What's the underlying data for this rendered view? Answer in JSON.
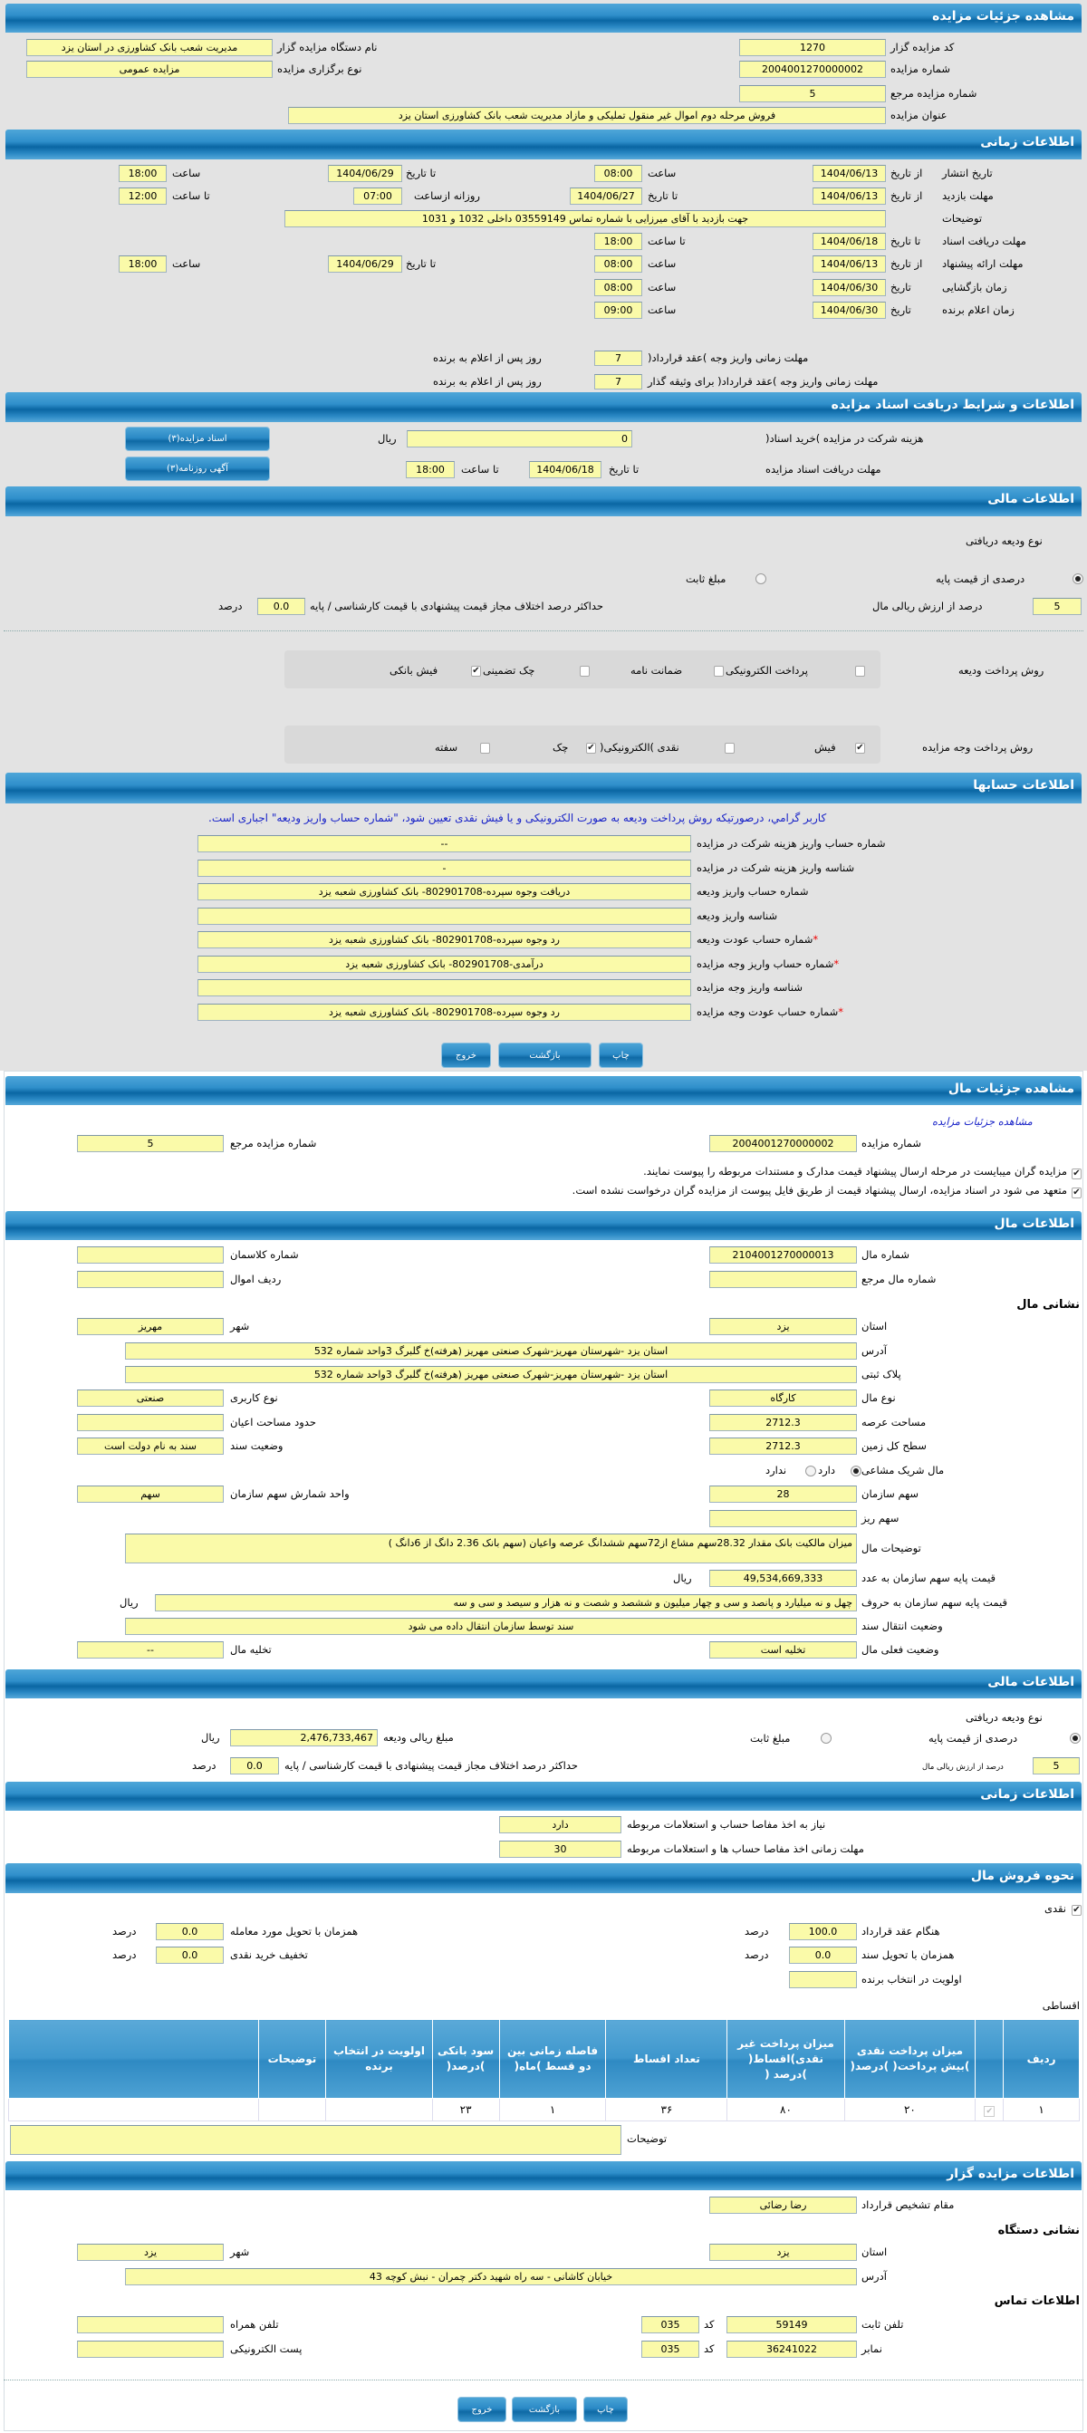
{
  "auction": {
    "title": "مشاهده جزئیات مزایده",
    "org_code_label": "کد مزایده گزار",
    "org_code": "1270",
    "org_name_label": "نام دستگاه مزایده گزار",
    "org_name": "مدیریت شعب بانک کشاورزی در استان یزد",
    "number_label": "شماره مزایده",
    "number": "2004001270000002",
    "type_label": "نوع برگزاری مزایده",
    "type": "مزایده عمومی",
    "ref_label": "شماره مزایده مرجع",
    "ref": "5",
    "subject_label": "عنوان مزایده",
    "subject": "فروش مرحله دوم اموال غیر منقول تملیکی و مازاد مدیریت شعب بانک کشاورزی استان یزد"
  },
  "timing": {
    "title": "اطلاعات زمانی",
    "from_date": "از تاریخ",
    "to_date": "تا تاریخ",
    "date": "تاریخ",
    "hour": "ساعت",
    "to_hour": "تا ساعت",
    "publish_label": "تاریخ انتشار",
    "publish_from": "1404/06/13",
    "publish_from_time": "08:00",
    "publish_to": "1404/06/29",
    "publish_to_time": "18:00",
    "visit_label": "مهلت بازدید",
    "visit_from": "1404/06/13",
    "visit_to": "1404/06/27",
    "daily_from_label": "روزانه ازساعت",
    "daily_from": "07:00",
    "daily_to": "12:00",
    "desc_label": "توضیحات",
    "desc": "جهت بازدید با آقای میرزایی با شماره تماس 03559149  داخلی 1032 و 1031",
    "docs_label": "مهلت دریافت اسناد",
    "docs_to": "1404/06/18",
    "docs_time": "18:00",
    "offer_label": "مهلت ارائه پیشنهاد",
    "offer_from": "1404/06/13",
    "offer_from_time": "08:00",
    "offer_to": "1404/06/29",
    "offer_to_time": "18:00",
    "opening_label": "زمان بازگشایی",
    "opening_date": "1404/06/30",
    "opening_time": "08:00",
    "winner_label": "زمان اعلام برنده",
    "winner_date": "1404/06/30",
    "winner_time": "09:00",
    "pay1_label": "مهلت زمانی واریز وجه )عقد قرارداد(",
    "pay1": "7",
    "pay2_label": "مهلت زمانی واریز وجه )عقد قرارداد( برای وثیقه گذار",
    "pay2": "7",
    "days_after": "روز پس از اعلام به برنده"
  },
  "docs": {
    "title": "اطلاعات و شرایط دریافت اسناد مزایده",
    "fee_label": "هزینه شرکت در مزایده )خرید اسناد(",
    "fee": "0",
    "rial": "ریال",
    "deadline_label": "مهلت دریافت اسناد مزایده",
    "date": "1404/06/18",
    "time": "18:00",
    "btn_docs": "اسناد مزایده(۳)",
    "btn_ad": "آگهی روزنامه(۳)"
  },
  "financial": {
    "title": "اطلاعات مالی",
    "deposit_type_label": "نوع ودیعه دریافتی",
    "opt_percent": "درصدی از قیمت پایه",
    "opt_fixed": "مبلغ ثابت",
    "selected": "percent",
    "percent": "5",
    "percent_label": "درصد از ارزش ریالی مال",
    "max_diff_label": "حداکثر درصد اختلاف مجاز قیمت پیشنهادی با قیمت کارشناسی / پایه",
    "max_diff": "0.0",
    "unit": "درصد",
    "deposit_method_label": "روش پرداخت ودیعه",
    "deposit_methods": [
      {
        "label": "پرداخت الکترونیکی",
        "checked": false
      },
      {
        "label": "ضمانت نامه",
        "checked": false
      },
      {
        "label": "چک تضمینی",
        "checked": false
      },
      {
        "label": "فیش بانکی",
        "checked": true
      }
    ],
    "payment_method_label": "روش پرداخت وجه مزایده",
    "payment_methods": [
      {
        "label": "فیش",
        "checked": true
      },
      {
        "label": "نقدی )الکترونیکی(",
        "checked": false
      },
      {
        "label": "چک",
        "checked": true
      },
      {
        "label": "سفته",
        "checked": false
      }
    ]
  },
  "accounts": {
    "title": "اطلاعات حسابها",
    "notice": "کاربر گرامي، درصورتيكه روش پرداخت وديعه به صورت الكترونيكی و يا فيش نقدی تعيين شود، \"شماره حساب واريز وديعه\" اجباری است.",
    "rows": [
      {
        "label": "شماره حساب واریز هزینه شرکت در مزایده",
        "value": "--",
        "required": false
      },
      {
        "label": "شناسه واریز هزینه شرکت در مزایده",
        "value": "-",
        "required": false
      },
      {
        "label": "شماره حساب واریز ودیعه",
        "value": "دریافت وجوه سپرده-802901708- بانک کشاورزی شعبه یزد",
        "required": false
      },
      {
        "label": "شناسه واریز ودیعه",
        "value": "",
        "required": false
      },
      {
        "label": "شماره حساب عودت ودیعه",
        "value": "رد وجوه سپرده-802901708- بانک کشاورزی شعبه یزد",
        "required": true
      },
      {
        "label": "شماره حساب واریز وجه مزایده",
        "value": "درآمدی-802901708- بانک کشاورزی شعبه یزد",
        "required": true
      },
      {
        "label": "شناسه واریز وجه مزایده",
        "value": "",
        "required": false
      },
      {
        "label": "شماره حساب عودت وجه مزایده",
        "value": "رد وجوه سپرده-802901708- بانک کشاورزی شعبه یزد",
        "required": true
      }
    ]
  },
  "buttons": {
    "print": "چاپ",
    "back": "بازگشت",
    "exit": "خروج"
  },
  "property": {
    "title": "مشاهده جزئیات مال",
    "link": "مشاهده جزئیات مزایده",
    "auction_number_label": "شماره مزایده",
    "auction_number": "2004001270000002",
    "ref_label": "شماره مزایده مرجع",
    "ref": "5",
    "check1": "مزایده گران میبایست در مرحله ارسال پیشنهاد قیمت مدارک و مستندات مربوطه را پیوست نمایند.",
    "check2": "متعهد می شود در اسناد مزایده، ارسال پیشنهاد قیمت از طریق فایل پیوست از مزایده گران درخواست نشده است."
  },
  "item": {
    "title": "اطلاعات مال",
    "number_label": "شماره مال",
    "number": "2104001270000013",
    "class_label": "شماره کلاسمان",
    "class": "",
    "ref_label": "شماره مال مرجع",
    "ref": "",
    "row_label": "ردیف اموال",
    "row": "",
    "address_heading": "نشانی مال",
    "province_label": "استان",
    "province": "یزد",
    "city_label": "شهر",
    "city": "مهریز",
    "address_label": "آدرس",
    "address": "استان یزد -شهرستان مهریز-شهرک صنعتی مهریز (هرفته)خ گلبرگ 3واحد شماره 532",
    "plate_label": "پلاک ثبتی",
    "plate": "استان یزد -شهرستان مهریز-شهرک صنعتی مهریز (هرفته)خ گلبرگ 3واحد شماره 532",
    "kind_label": "نوع مال",
    "kind": "کارگاه",
    "usage_label": "نوع کاربری",
    "usage": "صنعتی",
    "area_label": "مساحت عرصه",
    "area": "2712.3",
    "building_label": "حدود مساحت اعیان",
    "building": "",
    "land_label": "سطح کل زمین",
    "land": "2712.3",
    "deed_label": "وضعیت سند",
    "deed": "سند به نام دولت است",
    "shared_label": "مال شریک مشاعی",
    "has": "دارد",
    "hasnot": "ندارد",
    "shared": "has",
    "share_label": "سهم سازمان",
    "share": "28",
    "share_unit_label": "واحد شمارش سهم سازمان",
    "share_unit": "سهم",
    "minor_label": "سهم ریز",
    "minor": "",
    "desc_label": "توضیحات مال",
    "desc": "میزان مالکیت بانک مقدار 28.32سهم مشاع از72سهم ششدانگ عرصه واعیان (سهم بانک 2.36 دانگ از 6دانگ )",
    "price_label": "قیمت پایه سهم سازمان به عدد",
    "price": "49,534,669,333",
    "rial": "ریال",
    "price_words_label": "قیمت پایه سهم سازمان به حروف",
    "price_words": "چهل و نه میلیارد و پانصد و سی و چهار میلیون و ششصد و شصت و نه هزار و سیصد و سی و سه",
    "transfer_label": "وضعیت انتقال سند",
    "transfer": "سند توسط سازمان انتقال داده می شود",
    "status_label": "وضعیت فعلی مال",
    "status": "تخلیه است",
    "evac_label": "تخلیه مال",
    "evac": "--"
  },
  "financial2": {
    "title": "اطلاعات مالی",
    "deposit_type_label": "نوع ودیعه دریافتی",
    "opt_percent": "درصدی از قیمت پایه",
    "opt_fixed": "مبلغ ثابت",
    "amount_label": "مبلغ ریالی ودیعه",
    "amount": "2,476,733,467",
    "rial": "ریال",
    "percent": "5",
    "percent_label": "درصد از ارزش ریالی مال",
    "max_diff_label": "حداکثر درصد اختلاف مجاز قیمت پیشنهادی با قیمت کارشناسی / پایه",
    "max_diff": "0.0",
    "unit": "درصد"
  },
  "timing2": {
    "title": "اطلاعات زمانی",
    "clearance_label": "نیاز به اخذ مفاصا حساب و استعلامات مربوطه",
    "clearance": "دارد",
    "clearance_days_label": "مهلت زمانی اخذ مفاصا حساب ها و استعلامات مربوطه",
    "clearance_days": "30"
  },
  "sale": {
    "title": "نحوه فروش مال",
    "cash_label": "نقدی",
    "contract_label": "هنگام عقد قرارداد",
    "contract": "100.0",
    "unit": "درصد",
    "delivery_doc_label": "همزمان با تحویل سند",
    "delivery_doc": "0.0",
    "priority_label": "اولویت در انتخاب برنده",
    "priority": "",
    "delivery_item_label": "همزمان با تحویل مورد معامله",
    "delivery_item": "0.0",
    "discount_label": "تخفیف خرید نقدی",
    "discount": "0.0",
    "installments_label": "اقساطی",
    "table_headers": [
      "ردیف",
      "",
      "میزان پرداخت نقدی )بیش پرداخت( )درصد(",
      "میزان پرداخت غیر نقدی)اقساط( )درصد (",
      "تعداد اقساط",
      "فاصله زمانی بین دو قسط )ماه(",
      "سود بانکی )درصد(",
      "اولویت در انتخاب برنده",
      "توضیحات",
      ""
    ],
    "table_rows": [
      [
        "١",
        "",
        "٢٠",
        "٨٠",
        "٣۶",
        "١",
        "٢٣",
        "",
        "",
        ""
      ]
    ],
    "notes_label": "توضیحات",
    "notes": ""
  },
  "auctioneer": {
    "title": "اطلاعات مزایده گزار",
    "authority_label": "مقام تشخیص قرارداد",
    "authority": "رضا رضائی",
    "address_heading": "نشانی دستگاه",
    "province_label": "استان",
    "province": "یزد",
    "city_label": "شهر",
    "city": "یزد",
    "address_label": "آدرس",
    "address": "خیابان کاشانی - سه راه شهید دکتر چمران - نبش کوچه 43",
    "contact_heading": "اطلاعات تماس",
    "phone_label": "تلفن ثابت",
    "phone": "59149",
    "code_label": "کد",
    "phone_code": "035",
    "mobile_label": "تلفن همراه",
    "mobile": "",
    "fax_label": "نمابر",
    "fax": "36241022",
    "fax_code": "035",
    "email_label": "پست الکترونیکی",
    "email": ""
  },
  "colors": {
    "header_blue": "#0a66a3",
    "field_yellow": "#fafaa9",
    "notice_blue": "#1a24c8",
    "required_red": "#e00000"
  }
}
